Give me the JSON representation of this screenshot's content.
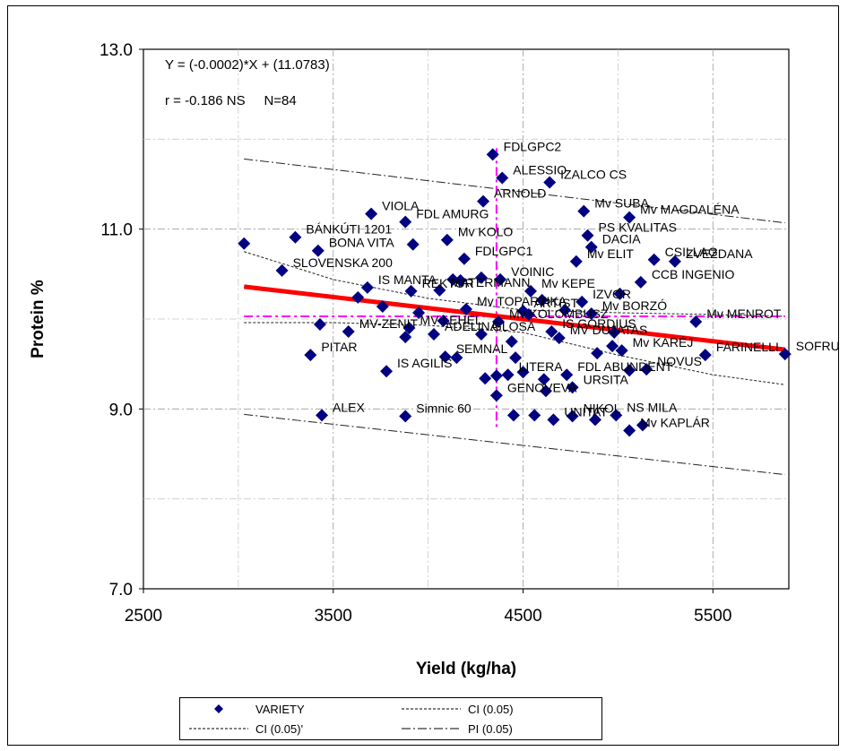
{
  "chart_data": {
    "type": "scatter",
    "xlabel": "Yield (kg/ha)",
    "ylabel": "Protein %",
    "xlim": [
      2500,
      5900
    ],
    "ylim": [
      7.0,
      13.0
    ],
    "xticks": [
      2500,
      3500,
      4500,
      5500
    ],
    "yticks": [
      7.0,
      9.0,
      11.0,
      13.0
    ],
    "xtick_labels": [
      "2500",
      "3500",
      "4500",
      "5500"
    ],
    "ytick_labels": [
      "7.0",
      "9.0",
      "11.0",
      "13.0"
    ],
    "grid": true,
    "equation": "Y = (-0.0002)*X + (11.0783)",
    "stats": "r = -0.186 NS     N=84",
    "regression": {
      "x": [
        3030,
        5880
      ],
      "y": [
        10.36,
        9.66
      ],
      "color": "#ff0000"
    },
    "mean_lines": {
      "x": 4360,
      "y": 10.03,
      "color": "#ff00ff"
    },
    "ci_upper": {
      "x": [
        3030,
        3500,
        4000,
        4500,
        5000,
        5500,
        5880
      ],
      "y": [
        10.75,
        10.44,
        10.23,
        10.1,
        10.07,
        10.05,
        10.03
      ]
    },
    "ci_lower": {
      "x": [
        3030,
        3500,
        4000,
        4500,
        5000,
        5500,
        5880
      ],
      "y": [
        9.96,
        9.96,
        9.93,
        9.85,
        9.6,
        9.38,
        9.27
      ]
    },
    "pi_upper": {
      "x": [
        3030,
        5880
      ],
      "y": [
        11.78,
        11.07
      ]
    },
    "pi_lower": {
      "x": [
        3030,
        5880
      ],
      "y": [
        8.94,
        8.27
      ]
    },
    "series": [
      {
        "name": "VARIETY",
        "color": "#000080",
        "points": [
          {
            "x": 4340,
            "y": 11.83,
            "label": "FDLGPC2"
          },
          {
            "x": 4390,
            "y": 11.57,
            "label": "ALESSIO"
          },
          {
            "x": 4640,
            "y": 11.52,
            "label": "IZALCO CS"
          },
          {
            "x": 4290,
            "y": 11.31,
            "label": "ARNOLD"
          },
          {
            "x": 4820,
            "y": 11.2,
            "label": "Mv SUBA"
          },
          {
            "x": 5060,
            "y": 11.13,
            "label": "Mv MAGDALÉNA"
          },
          {
            "x": 3700,
            "y": 11.17,
            "label": "VIOLA"
          },
          {
            "x": 3880,
            "y": 11.08,
            "label": "FDL AMURG"
          },
          {
            "x": 3030,
            "y": 10.84,
            "label": ""
          },
          {
            "x": 3300,
            "y": 10.91,
            "label": "BÁNKÚTI 1201"
          },
          {
            "x": 3420,
            "y": 10.76,
            "label": "BONA VITA"
          },
          {
            "x": 3920,
            "y": 10.83,
            "label": ""
          },
          {
            "x": 4100,
            "y": 10.88,
            "label": "Mv KOLO"
          },
          {
            "x": 4840,
            "y": 10.93,
            "label": "PS KVALITAS"
          },
          {
            "x": 4860,
            "y": 10.8,
            "label": "DACIA"
          },
          {
            "x": 4780,
            "y": 10.64,
            "label": "Mv ELIT"
          },
          {
            "x": 5190,
            "y": 10.66,
            "label": "CSILLAG"
          },
          {
            "x": 5300,
            "y": 10.64,
            "label": "ZVEZDANA"
          },
          {
            "x": 4190,
            "y": 10.67,
            "label": "FDLGPC1"
          },
          {
            "x": 3230,
            "y": 10.54,
            "label": "SLOVENSKA 200"
          },
          {
            "x": 4280,
            "y": 10.46,
            "label": ""
          },
          {
            "x": 4380,
            "y": 10.44,
            "label": "VOINIC"
          },
          {
            "x": 4170,
            "y": 10.43,
            "label": ""
          },
          {
            "x": 4130,
            "y": 10.44,
            "label": ""
          },
          {
            "x": 5120,
            "y": 10.41,
            "label": "CCB INGENIO"
          },
          {
            "x": 3680,
            "y": 10.35,
            "label": "IS MANTA"
          },
          {
            "x": 3910,
            "y": 10.31,
            "label": "REKTOR"
          },
          {
            "x": 4060,
            "y": 10.32,
            "label": "MATERMANN"
          },
          {
            "x": 4540,
            "y": 10.31,
            "label": "Mv KEPE"
          },
          {
            "x": 5010,
            "y": 10.28,
            "label": ""
          },
          {
            "x": 3630,
            "y": 10.24,
            "label": ""
          },
          {
            "x": 4600,
            "y": 10.21,
            "label": ""
          },
          {
            "x": 4810,
            "y": 10.19,
            "label": "IZVOR"
          },
          {
            "x": 3760,
            "y": 10.14,
            "label": ""
          },
          {
            "x": 4200,
            "y": 10.11,
            "label": "Mv TOPARTIKA"
          },
          {
            "x": 4500,
            "y": 10.09,
            "label": "ARTIST"
          },
          {
            "x": 4720,
            "y": 10.1,
            "label": ""
          },
          {
            "x": 4860,
            "y": 10.06,
            "label": "Mv BORZÓ"
          },
          {
            "x": 5410,
            "y": 9.97,
            "label": "Mv MENROT"
          },
          {
            "x": 4080,
            "y": 9.98,
            "label": ""
          },
          {
            "x": 3430,
            "y": 9.94,
            "label": ""
          },
          {
            "x": 4370,
            "y": 9.97,
            "label": "Mv KOLOMBUSZ"
          },
          {
            "x": 3900,
            "y": 9.9,
            "label": "MV LEHEL"
          },
          {
            "x": 3580,
            "y": 9.86,
            "label": "MV-ZENIT"
          },
          {
            "x": 4030,
            "y": 9.83,
            "label": "ADELINA"
          },
          {
            "x": 4280,
            "y": 9.83,
            "label": "GLOSA"
          },
          {
            "x": 4650,
            "y": 9.86,
            "label": "IS GORDIUS"
          },
          {
            "x": 3880,
            "y": 9.8,
            "label": ""
          },
          {
            "x": 4690,
            "y": 9.79,
            "label": "MV DUJATAS"
          },
          {
            "x": 4440,
            "y": 9.75,
            "label": ""
          },
          {
            "x": 4970,
            "y": 9.7,
            "label": ""
          },
          {
            "x": 5020,
            "y": 9.65,
            "label": "Mv KARÉJ"
          },
          {
            "x": 3380,
            "y": 9.6,
            "label": "PITAR"
          },
          {
            "x": 4090,
            "y": 9.58,
            "label": "SEMNAL"
          },
          {
            "x": 4150,
            "y": 9.57,
            "label": ""
          },
          {
            "x": 4460,
            "y": 9.57,
            "label": ""
          },
          {
            "x": 4890,
            "y": 9.62,
            "label": ""
          },
          {
            "x": 5460,
            "y": 9.6,
            "label": "FARINELLI"
          },
          {
            "x": 5880,
            "y": 9.61,
            "label": "SOFRU"
          },
          {
            "x": 3780,
            "y": 9.42,
            "label": "IS AGILIS"
          },
          {
            "x": 4500,
            "y": 9.41,
            "label": ""
          },
          {
            "x": 4360,
            "y": 9.37,
            "label": ""
          },
          {
            "x": 4420,
            "y": 9.38,
            "label": "LITERA"
          },
          {
            "x": 4730,
            "y": 9.38,
            "label": "FDL ABUNDENT"
          },
          {
            "x": 5060,
            "y": 9.43,
            "label": ""
          },
          {
            "x": 5150,
            "y": 9.44,
            "label": "NOVUS"
          },
          {
            "x": 4300,
            "y": 9.34,
            "label": ""
          },
          {
            "x": 4610,
            "y": 9.33,
            "label": ""
          },
          {
            "x": 4760,
            "y": 9.24,
            "label": "URSITA"
          },
          {
            "x": 4620,
            "y": 9.2,
            "label": ""
          },
          {
            "x": 4360,
            "y": 9.15,
            "label": "GENOVEVA"
          },
          {
            "x": 3440,
            "y": 8.93,
            "label": "ALEX"
          },
          {
            "x": 3880,
            "y": 8.92,
            "label": "Simnic 60"
          },
          {
            "x": 4450,
            "y": 8.93,
            "label": ""
          },
          {
            "x": 4560,
            "y": 8.93,
            "label": ""
          },
          {
            "x": 4660,
            "y": 8.88,
            "label": "UNITAT"
          },
          {
            "x": 4760,
            "y": 8.92,
            "label": "NIKOL"
          },
          {
            "x": 4990,
            "y": 8.93,
            "label": "NS MILA"
          },
          {
            "x": 5060,
            "y": 8.76,
            "label": "Mv KAPLÁR"
          },
          {
            "x": 5130,
            "y": 8.82,
            "label": ""
          },
          {
            "x": 4880,
            "y": 8.88,
            "label": ""
          },
          {
            "x": 4980,
            "y": 9.85,
            "label": ""
          },
          {
            "x": 4530,
            "y": 10.05,
            "label": ""
          },
          {
            "x": 3950,
            "y": 10.07,
            "label": ""
          }
        ]
      }
    ],
    "legend": [
      {
        "label": "VARIETY",
        "symbol": "diamond"
      },
      {
        "label": "CI (0.05)",
        "symbol": "dash"
      },
      {
        "label": "CI (0.05)'",
        "symbol": "dash"
      },
      {
        "label": "PI (0.05)",
        "symbol": "dashdot"
      }
    ]
  }
}
